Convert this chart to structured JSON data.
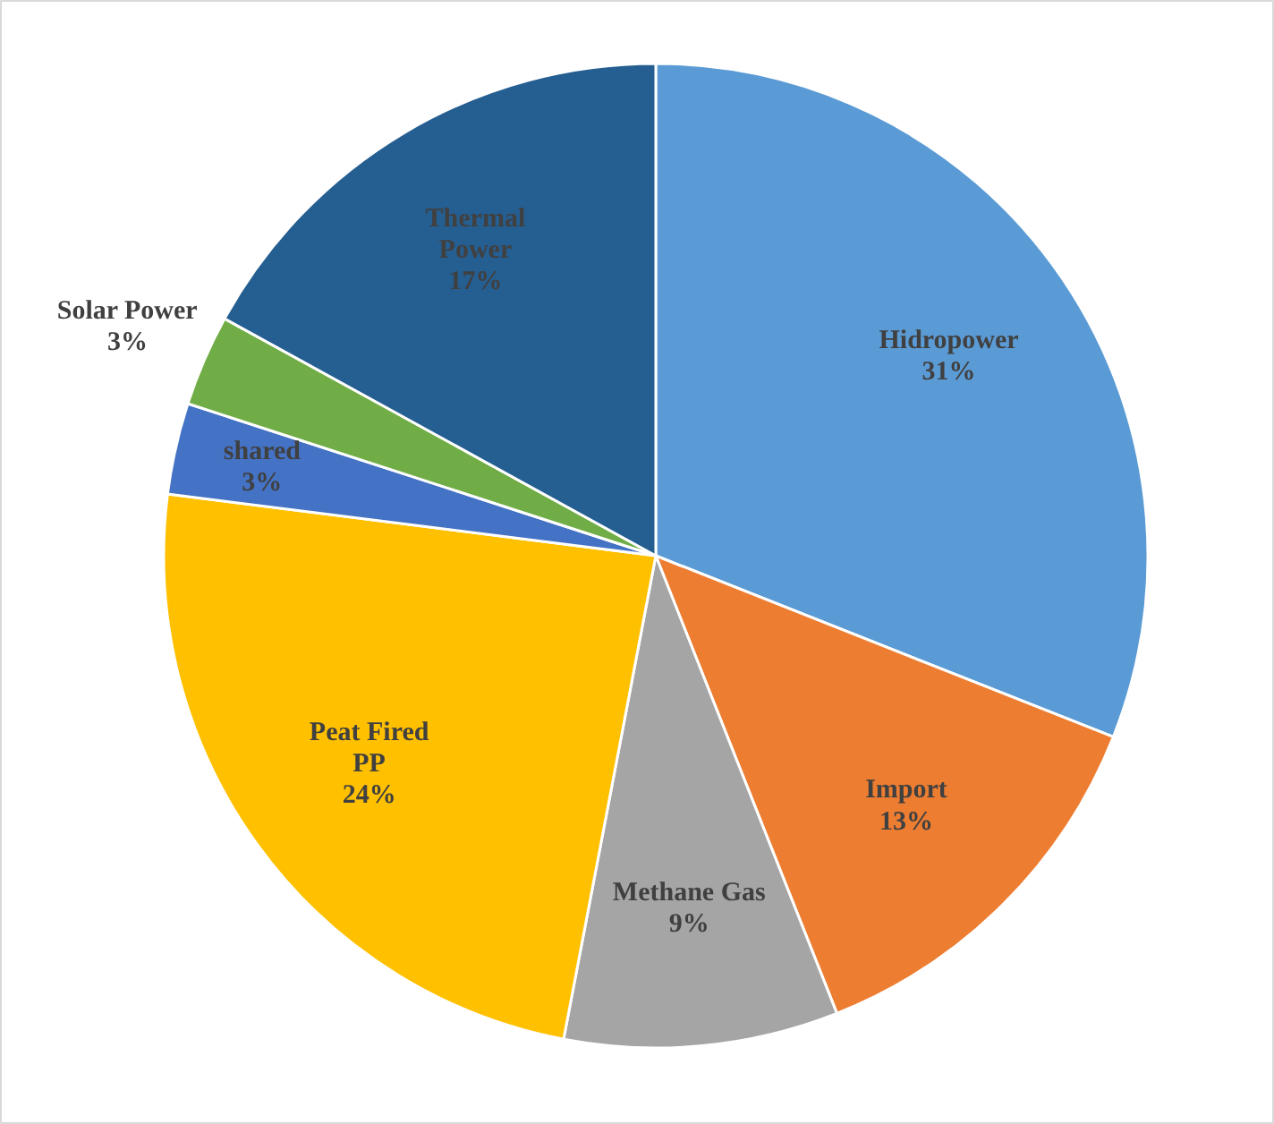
{
  "chart_data": {
    "type": "pie",
    "categories": [
      "Hidropower",
      "Import",
      "Methane Gas",
      "Peat Fired PP",
      "shared",
      "Solar Power",
      "Thermal Power"
    ],
    "values": [
      31,
      13,
      9,
      24,
      3,
      3,
      17
    ],
    "colors": [
      "#5b9bd5",
      "#ed7d31",
      "#a5a5a5",
      "#ffc000",
      "#4472c4",
      "#70ad47",
      "#255e91"
    ],
    "value_labels": [
      "31%",
      "13%",
      "9%",
      "24%",
      "3%",
      "3%",
      "17%"
    ]
  }
}
